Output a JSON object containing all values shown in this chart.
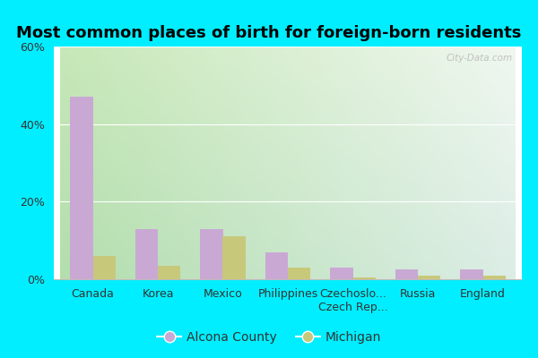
{
  "title": "Most common places of birth for foreign-born residents",
  "categories": [
    "Canada",
    "Korea",
    "Mexico",
    "Philippines",
    "Czechoslo...\nCzech Rep...",
    "Russia",
    "England"
  ],
  "alcona_values": [
    47,
    13,
    13,
    7,
    3,
    2.5,
    2.5
  ],
  "michigan_values": [
    6,
    3.5,
    11,
    3,
    0.5,
    1,
    1
  ],
  "ylim": [
    0,
    60
  ],
  "yticks": [
    0,
    20,
    40,
    60
  ],
  "ytick_labels": [
    "0%",
    "20%",
    "40%",
    "60%"
  ],
  "alcona_color": "#c9a8d4",
  "michigan_color": "#c8c87a",
  "alcona_label": "Alcona County",
  "michigan_label": "Michigan",
  "bar_width": 0.35,
  "bg_color_topleft": "#d4edd4",
  "bg_color_topright": "#e8f8f0",
  "bg_color_bottom": "#f5fdf0",
  "watermark": "City-Data.com",
  "title_fontsize": 13,
  "tick_fontsize": 9,
  "fig_bg": "#00eeff",
  "chart_bg_left": "#c8e8b8",
  "chart_bg_right": "#f0f8f0"
}
